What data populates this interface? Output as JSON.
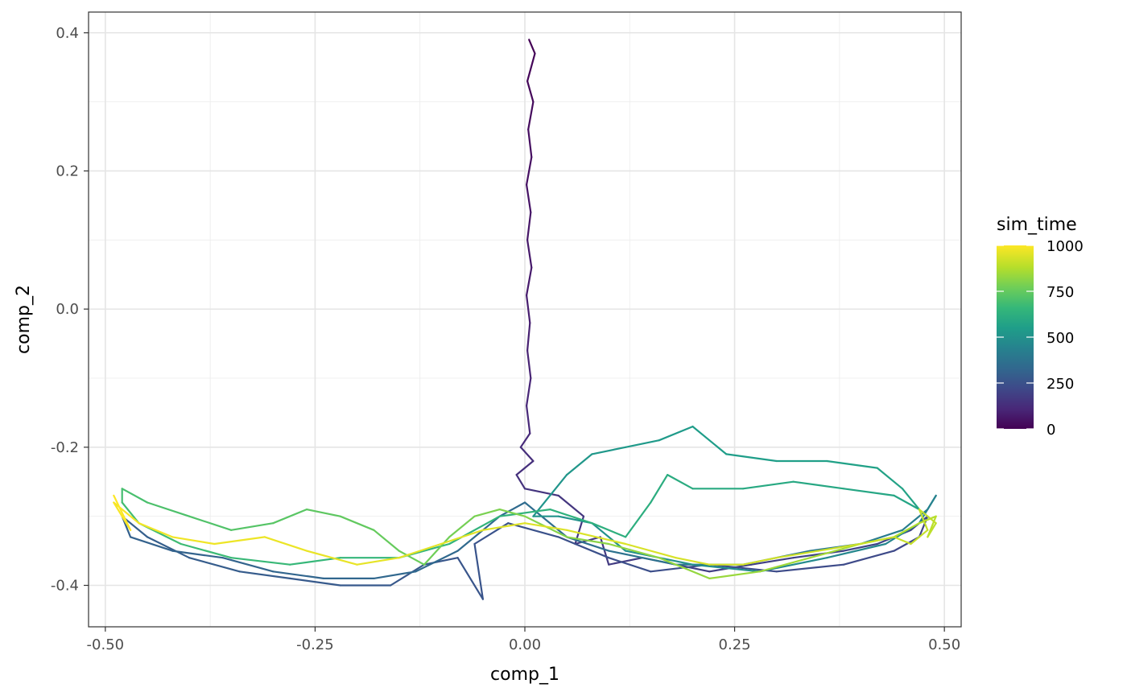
{
  "chart_data": {
    "type": "line",
    "title": "",
    "xlabel": "comp_1",
    "ylabel": "comp_2",
    "xlim": [
      -0.52,
      0.52
    ],
    "ylim": [
      -0.46,
      0.43
    ],
    "x_ticks": [
      -0.5,
      -0.25,
      0,
      0.25,
      0.5
    ],
    "x_tick_labels": [
      "-0.50",
      "-0.25",
      "0.00",
      "0.25",
      "0.50"
    ],
    "y_ticks": [
      -0.4,
      -0.2,
      0,
      0.2,
      0.4
    ],
    "y_tick_labels": [
      "-0.4",
      "-0.2",
      "0.0",
      "0.2",
      "0.4"
    ],
    "grid": true,
    "color_scale": {
      "title": "sim_time",
      "palette": "viridis",
      "range": [
        0,
        1000
      ],
      "breaks": [
        0,
        250,
        500,
        750,
        1000
      ],
      "break_labels": [
        "0",
        "250",
        "500",
        "750",
        "1000"
      ],
      "colors": [
        "#440154",
        "#482878",
        "#3e4989",
        "#31688e",
        "#26828e",
        "#1f9e89",
        "#35b779",
        "#6ece58",
        "#b5de2b",
        "#fde725"
      ],
      "legend_position": "right"
    },
    "series": [
      {
        "time_range": [
          0,
          150
        ],
        "points": [
          [
            0.005,
            0.39
          ],
          [
            0.012,
            0.37
          ],
          [
            0.003,
            0.33
          ],
          [
            0.01,
            0.3
          ],
          [
            0.004,
            0.26
          ],
          [
            0.008,
            0.22
          ],
          [
            0.002,
            0.18
          ],
          [
            0.007,
            0.14
          ],
          [
            0.003,
            0.1
          ],
          [
            0.008,
            0.06
          ],
          [
            0.002,
            0.02
          ],
          [
            0.006,
            -0.02
          ],
          [
            0.003,
            -0.06
          ],
          [
            0.007,
            -0.1
          ],
          [
            0.002,
            -0.14
          ],
          [
            0.006,
            -0.18
          ],
          [
            -0.005,
            -0.2
          ],
          [
            0.01,
            -0.22
          ],
          [
            -0.01,
            -0.24
          ],
          [
            0.0,
            -0.26
          ]
        ]
      },
      {
        "time_range": [
          150,
          350
        ],
        "points": [
          [
            0.0,
            -0.26
          ],
          [
            0.04,
            -0.27
          ],
          [
            0.07,
            -0.3
          ],
          [
            0.06,
            -0.34
          ],
          [
            0.09,
            -0.33
          ],
          [
            0.1,
            -0.37
          ],
          [
            0.14,
            -0.36
          ],
          [
            0.18,
            -0.37
          ],
          [
            0.22,
            -0.38
          ],
          [
            0.27,
            -0.37
          ],
          [
            0.32,
            -0.36
          ],
          [
            0.38,
            -0.35
          ],
          [
            0.42,
            -0.34
          ],
          [
            0.46,
            -0.32
          ],
          [
            0.48,
            -0.3
          ],
          [
            0.47,
            -0.33
          ],
          [
            0.44,
            -0.35
          ],
          [
            0.38,
            -0.37
          ],
          [
            0.3,
            -0.38
          ],
          [
            0.22,
            -0.37
          ],
          [
            0.15,
            -0.38
          ],
          [
            0.1,
            -0.36
          ],
          [
            0.04,
            -0.33
          ],
          [
            -0.02,
            -0.31
          ],
          [
            -0.06,
            -0.34
          ],
          [
            -0.05,
            -0.42
          ],
          [
            -0.08,
            -0.36
          ],
          [
            -0.12,
            -0.37
          ],
          [
            -0.16,
            -0.4
          ],
          [
            -0.22,
            -0.4
          ],
          [
            -0.28,
            -0.39
          ],
          [
            -0.34,
            -0.38
          ],
          [
            -0.4,
            -0.36
          ],
          [
            -0.45,
            -0.33
          ],
          [
            -0.48,
            -0.3
          ],
          [
            -0.47,
            -0.33
          ],
          [
            -0.42,
            -0.35
          ],
          [
            -0.36,
            -0.36
          ],
          [
            -0.3,
            -0.38
          ],
          [
            -0.24,
            -0.39
          ],
          [
            -0.18,
            -0.39
          ],
          [
            -0.13,
            -0.38
          ],
          [
            -0.08,
            -0.35
          ],
          [
            -0.03,
            -0.3
          ],
          [
            0.0,
            -0.28
          ]
        ]
      },
      {
        "time_range": [
          350,
          500
        ],
        "points": [
          [
            0.0,
            -0.28
          ],
          [
            0.05,
            -0.33
          ],
          [
            0.1,
            -0.35
          ],
          [
            0.18,
            -0.37
          ],
          [
            0.26,
            -0.37
          ],
          [
            0.34,
            -0.35
          ],
          [
            0.4,
            -0.34
          ],
          [
            0.45,
            -0.32
          ],
          [
            0.48,
            -0.29
          ],
          [
            0.49,
            -0.27
          ],
          [
            0.47,
            -0.31
          ],
          [
            0.43,
            -0.34
          ],
          [
            0.36,
            -0.36
          ],
          [
            0.28,
            -0.38
          ],
          [
            0.2,
            -0.37
          ],
          [
            0.12,
            -0.35
          ]
        ]
      },
      {
        "time_range": [
          500,
          700
        ],
        "points": [
          [
            0.12,
            -0.35
          ],
          [
            0.08,
            -0.31
          ],
          [
            0.04,
            -0.3
          ],
          [
            0.01,
            -0.3
          ],
          [
            0.05,
            -0.24
          ],
          [
            0.08,
            -0.21
          ],
          [
            0.12,
            -0.2
          ],
          [
            0.16,
            -0.19
          ],
          [
            0.2,
            -0.17
          ],
          [
            0.24,
            -0.21
          ],
          [
            0.3,
            -0.22
          ],
          [
            0.36,
            -0.22
          ],
          [
            0.42,
            -0.23
          ],
          [
            0.45,
            -0.26
          ],
          [
            0.47,
            -0.29
          ],
          [
            0.44,
            -0.27
          ],
          [
            0.38,
            -0.26
          ],
          [
            0.32,
            -0.25
          ],
          [
            0.26,
            -0.26
          ],
          [
            0.2,
            -0.26
          ],
          [
            0.17,
            -0.24
          ],
          [
            0.15,
            -0.28
          ],
          [
            0.12,
            -0.33
          ],
          [
            0.08,
            -0.31
          ],
          [
            0.03,
            -0.29
          ],
          [
            -0.03,
            -0.3
          ],
          [
            -0.09,
            -0.34
          ],
          [
            -0.15,
            -0.36
          ],
          [
            -0.22,
            -0.36
          ],
          [
            -0.28,
            -0.37
          ],
          [
            -0.35,
            -0.36
          ],
          [
            -0.41,
            -0.34
          ],
          [
            -0.46,
            -0.31
          ],
          [
            -0.48,
            -0.28
          ],
          [
            -0.48,
            -0.26
          ]
        ]
      },
      {
        "time_range": [
          700,
          900
        ],
        "points": [
          [
            -0.48,
            -0.26
          ],
          [
            -0.45,
            -0.28
          ],
          [
            -0.4,
            -0.3
          ],
          [
            -0.35,
            -0.32
          ],
          [
            -0.3,
            -0.31
          ],
          [
            -0.26,
            -0.29
          ],
          [
            -0.22,
            -0.3
          ],
          [
            -0.18,
            -0.32
          ],
          [
            -0.15,
            -0.35
          ],
          [
            -0.12,
            -0.37
          ],
          [
            -0.09,
            -0.33
          ],
          [
            -0.06,
            -0.3
          ],
          [
            -0.03,
            -0.29
          ],
          [
            0.0,
            -0.3
          ],
          [
            0.05,
            -0.33
          ],
          [
            0.1,
            -0.34
          ],
          [
            0.16,
            -0.36
          ],
          [
            0.22,
            -0.39
          ],
          [
            0.28,
            -0.38
          ],
          [
            0.34,
            -0.36
          ],
          [
            0.4,
            -0.34
          ],
          [
            0.44,
            -0.33
          ],
          [
            0.47,
            -0.31
          ],
          [
            0.49,
            -0.3
          ],
          [
            0.48,
            -0.33
          ]
        ]
      },
      {
        "time_range": [
          900,
          1000
        ],
        "points": [
          [
            0.48,
            -0.33
          ],
          [
            0.49,
            -0.31
          ],
          [
            0.47,
            -0.29
          ],
          [
            0.48,
            -0.32
          ],
          [
            0.46,
            -0.34
          ],
          [
            0.44,
            -0.33
          ],
          [
            0.4,
            -0.34
          ],
          [
            0.35,
            -0.35
          ],
          [
            0.3,
            -0.36
          ],
          [
            0.26,
            -0.37
          ],
          [
            0.22,
            -0.37
          ],
          [
            0.18,
            -0.36
          ],
          [
            0.12,
            -0.34
          ],
          [
            0.05,
            -0.32
          ],
          [
            0.0,
            -0.31
          ],
          [
            -0.05,
            -0.32
          ],
          [
            -0.1,
            -0.34
          ],
          [
            -0.15,
            -0.36
          ],
          [
            -0.2,
            -0.37
          ],
          [
            -0.26,
            -0.35
          ],
          [
            -0.31,
            -0.33
          ],
          [
            -0.37,
            -0.34
          ],
          [
            -0.42,
            -0.33
          ],
          [
            -0.46,
            -0.31
          ],
          [
            -0.49,
            -0.28
          ],
          [
            -0.48,
            -0.3
          ],
          [
            -0.47,
            -0.32
          ],
          [
            -0.49,
            -0.27
          ]
        ]
      }
    ]
  }
}
